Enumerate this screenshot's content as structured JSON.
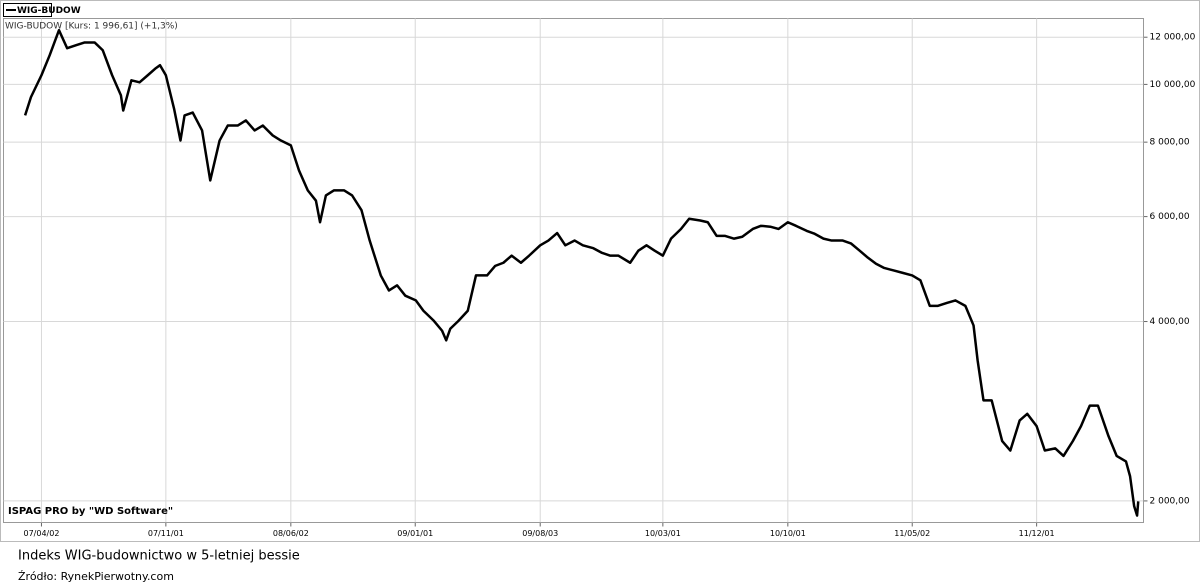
{
  "chart_data": {
    "type": "line",
    "title": "Indeks WIG-budownictwo w 5-letniej bessie",
    "source": "Źródło: RynekPierwotny.com",
    "subtitle": "WIG-BUDOW [Kurs: 1 996,61] (+1,3%)",
    "watermark": "ISPAG PRO by \"WD Software\"",
    "log_y": true,
    "grid": true,
    "legend": "top-left",
    "xlim": [
      "2007-01-27",
      "2012-06-01"
    ],
    "ylim": [
      1840,
      12900
    ],
    "xticks": [
      {
        "value": "2007-04-02",
        "label": "07/04/02"
      },
      {
        "value": "2007-11-01",
        "label": "07/11/01"
      },
      {
        "value": "2008-06-02",
        "label": "08/06/02"
      },
      {
        "value": "2009-01-01",
        "label": "09/01/01"
      },
      {
        "value": "2009-08-03",
        "label": "09/08/03"
      },
      {
        "value": "2010-03-01",
        "label": "10/03/01"
      },
      {
        "value": "2010-10-01",
        "label": "10/10/01"
      },
      {
        "value": "2011-05-02",
        "label": "11/05/02"
      },
      {
        "value": "2011-12-01",
        "label": "11/12/01"
      }
    ],
    "yticks": [
      {
        "value": 2000,
        "label": "2 000,00"
      },
      {
        "value": 4000,
        "label": "4 000,00"
      },
      {
        "value": 6000,
        "label": "6 000,00"
      },
      {
        "value": 8000,
        "label": "8 000,00"
      },
      {
        "value": 10000,
        "label": "10 000,00"
      },
      {
        "value": 12000,
        "label": "12 000,00"
      }
    ],
    "x": [
      "2007-03-05",
      "2007-03-15",
      "2007-04-02",
      "2007-04-16",
      "2007-05-02",
      "2007-05-16",
      "2007-06-01",
      "2007-06-15",
      "2007-07-02",
      "2007-07-16",
      "2007-08-01",
      "2007-08-16",
      "2007-08-20",
      "2007-09-03",
      "2007-09-17",
      "2007-10-01",
      "2007-10-15",
      "2007-10-22",
      "2007-11-01",
      "2007-11-15",
      "2007-11-26",
      "2007-12-03",
      "2007-12-17",
      "2008-01-02",
      "2008-01-16",
      "2008-02-01",
      "2008-02-15",
      "2008-03-03",
      "2008-03-17",
      "2008-04-01",
      "2008-04-15",
      "2008-05-02",
      "2008-05-16",
      "2008-06-02",
      "2008-06-16",
      "2008-07-01",
      "2008-07-15",
      "2008-07-22",
      "2008-08-01",
      "2008-08-15",
      "2008-09-01",
      "2008-09-15",
      "2008-10-01",
      "2008-10-15",
      "2008-11-03",
      "2008-11-17",
      "2008-12-01",
      "2008-12-15",
      "2009-01-02",
      "2009-01-15",
      "2009-02-02",
      "2009-02-16",
      "2009-02-23",
      "2009-03-02",
      "2009-03-16",
      "2009-04-01",
      "2009-04-15",
      "2009-05-04",
      "2009-05-18",
      "2009-06-01",
      "2009-06-15",
      "2009-07-01",
      "2009-07-15",
      "2009-08-03",
      "2009-08-17",
      "2009-09-01",
      "2009-09-15",
      "2009-10-01",
      "2009-10-15",
      "2009-11-02",
      "2009-11-16",
      "2009-12-01",
      "2009-12-15",
      "2010-01-04",
      "2010-01-18",
      "2010-02-01",
      "2010-02-15",
      "2010-03-01",
      "2010-03-15",
      "2010-04-01",
      "2010-04-15",
      "2010-05-04",
      "2010-05-17",
      "2010-06-01",
      "2010-06-15",
      "2010-07-01",
      "2010-07-15",
      "2010-08-02",
      "2010-08-16",
      "2010-09-01",
      "2010-09-15",
      "2010-10-01",
      "2010-10-15",
      "2010-11-02",
      "2010-11-15",
      "2010-12-01",
      "2010-12-15",
      "2011-01-03",
      "2011-01-17",
      "2011-02-01",
      "2011-02-15",
      "2011-03-01",
      "2011-03-15",
      "2011-04-01",
      "2011-04-15",
      "2011-05-02",
      "2011-05-16",
      "2011-06-01",
      "2011-06-15",
      "2011-07-01",
      "2011-07-15",
      "2011-08-01",
      "2011-08-15",
      "2011-08-22",
      "2011-09-01",
      "2011-09-15",
      "2011-10-03",
      "2011-10-17",
      "2011-11-02",
      "2011-11-15",
      "2011-12-01",
      "2011-12-15",
      "2012-01-02",
      "2012-01-16",
      "2012-02-01",
      "2012-02-15",
      "2012-03-01",
      "2012-03-15",
      "2012-04-02",
      "2012-04-16",
      "2012-05-02",
      "2012-05-09",
      "2012-05-16",
      "2012-05-21",
      "2012-05-23"
    ],
    "series": [
      {
        "name": "WIG-BUDOW",
        "color": "#000000",
        "values": [
          8870,
          9520,
          10360,
          11190,
          12330,
          11500,
          11640,
          11760,
          11760,
          11410,
          10360,
          9590,
          9040,
          10160,
          10080,
          10360,
          10650,
          10770,
          10360,
          9110,
          8050,
          8870,
          8970,
          8370,
          6900,
          8050,
          8530,
          8530,
          8700,
          8370,
          8530,
          8210,
          8050,
          7900,
          7170,
          6640,
          6380,
          5870,
          6510,
          6640,
          6640,
          6510,
          6150,
          5470,
          4780,
          4510,
          4600,
          4420,
          4340,
          4170,
          4010,
          3860,
          3720,
          3890,
          4010,
          4170,
          4780,
          4780,
          4960,
          5020,
          5160,
          5020,
          5160,
          5370,
          5470,
          5630,
          5370,
          5470,
          5370,
          5310,
          5220,
          5160,
          5160,
          5020,
          5260,
          5370,
          5260,
          5160,
          5510,
          5720,
          5950,
          5910,
          5870,
          5570,
          5570,
          5510,
          5550,
          5720,
          5790,
          5770,
          5720,
          5870,
          5790,
          5680,
          5620,
          5510,
          5470,
          5470,
          5410,
          5260,
          5120,
          5000,
          4920,
          4870,
          4830,
          4780,
          4690,
          4250,
          4250,
          4300,
          4340,
          4250,
          3940,
          3440,
          2950,
          2950,
          2520,
          2430,
          2730,
          2800,
          2670,
          2430,
          2450,
          2380,
          2520,
          2670,
          2890,
          2890,
          2570,
          2380,
          2330,
          2200,
          1960,
          1890,
          1996.61
        ]
      }
    ]
  }
}
